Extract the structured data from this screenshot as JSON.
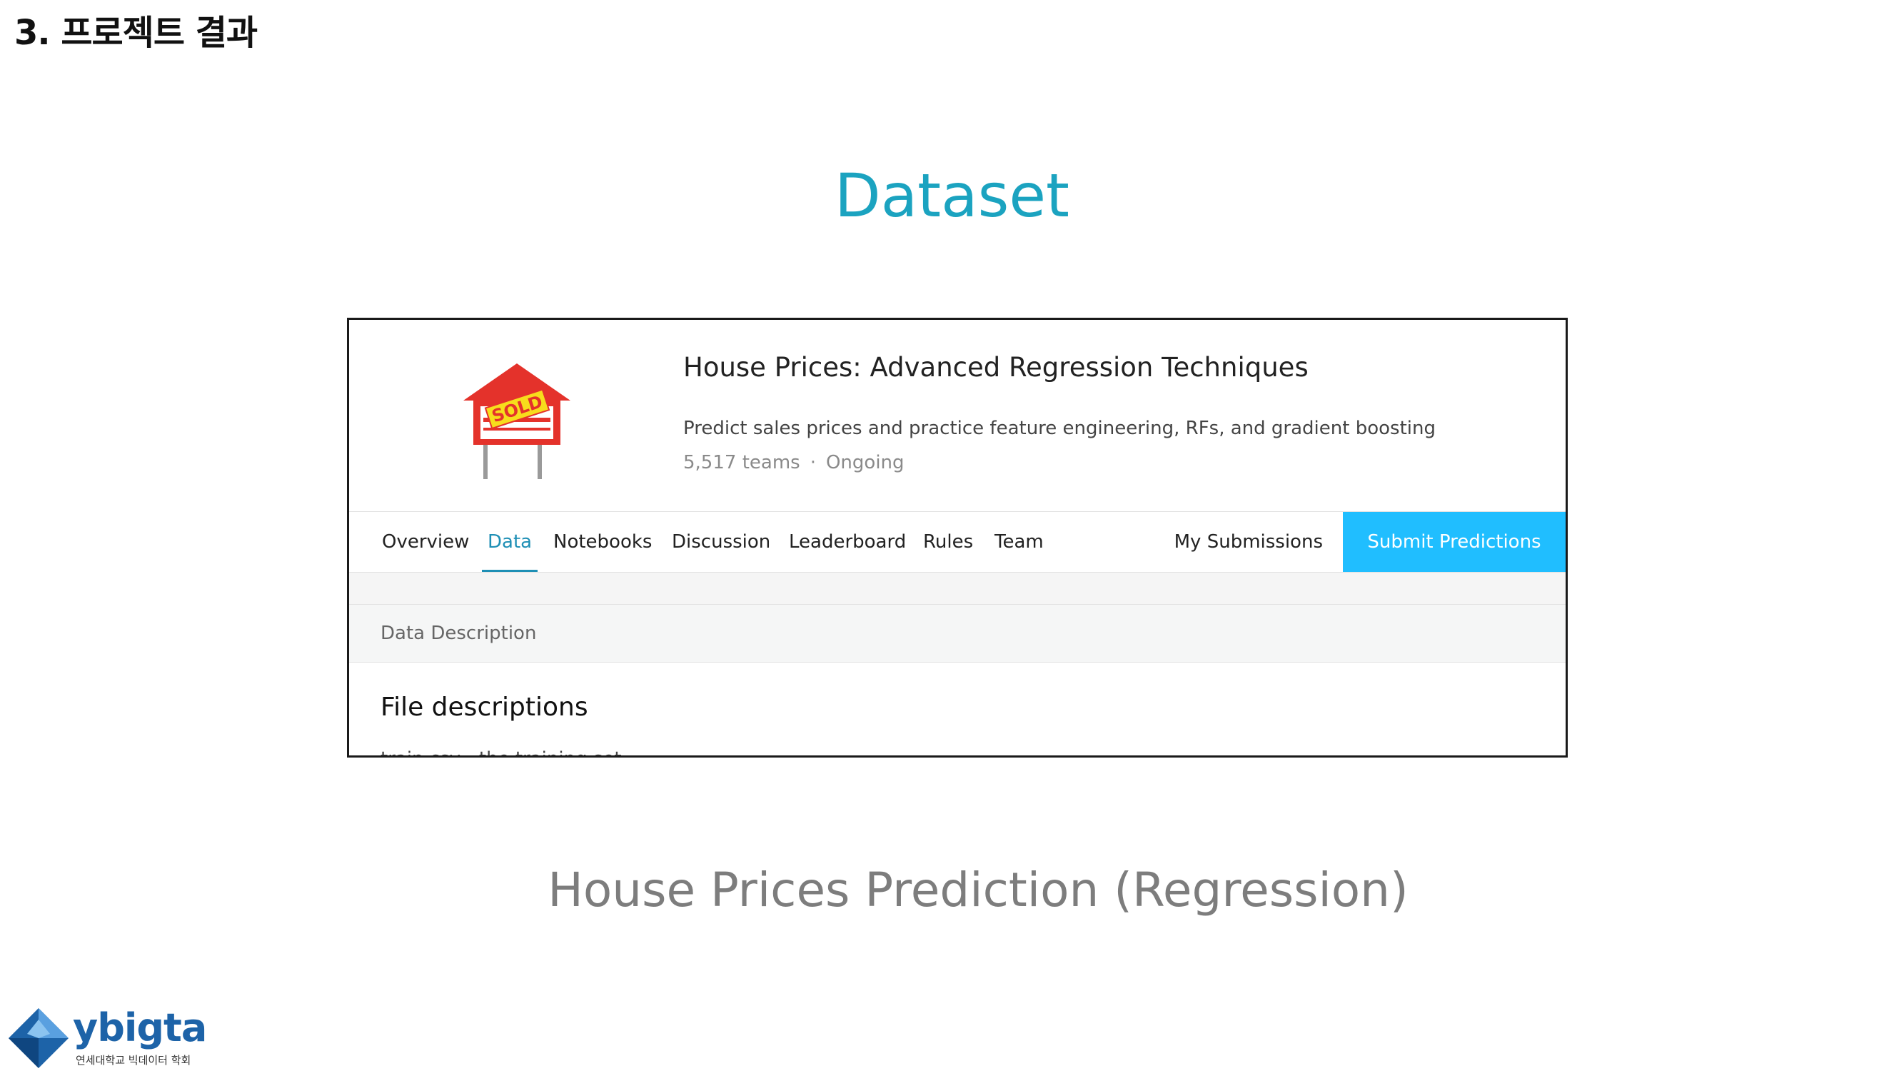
{
  "slide": {
    "heading": "3. 프로젝트 결과",
    "section_title": "Dataset",
    "caption": "House Prices Prediction (Regression)"
  },
  "competition": {
    "title": "House Prices: Advanced Regression Techniques",
    "subtitle": "Predict sales prices and practice feature engineering, RFs, and gradient boosting",
    "teams": "5,517 teams",
    "separator": "·",
    "status": "Ongoing",
    "logo_text": "SOLD"
  },
  "tabs": [
    {
      "label": "Overview"
    },
    {
      "label": "Data"
    },
    {
      "label": "Notebooks"
    },
    {
      "label": "Discussion"
    },
    {
      "label": "Leaderboard"
    },
    {
      "label": "Rules"
    },
    {
      "label": "Team"
    }
  ],
  "actions": {
    "my_submissions": "My Submissions",
    "submit_predictions": "Submit Predictions"
  },
  "content": {
    "data_description": "Data Description",
    "file_descriptions": "File descriptions",
    "first_bullet": "train.csv - the training set"
  },
  "brand": {
    "name": "ybigta",
    "subtitle": "연세대학교 빅데이터 학회"
  },
  "colors": {
    "accent": "#1ba3c0",
    "tab_active": "#1e8fb5",
    "submit_button": "#20beff",
    "brand_blue": "#1d63a8"
  }
}
